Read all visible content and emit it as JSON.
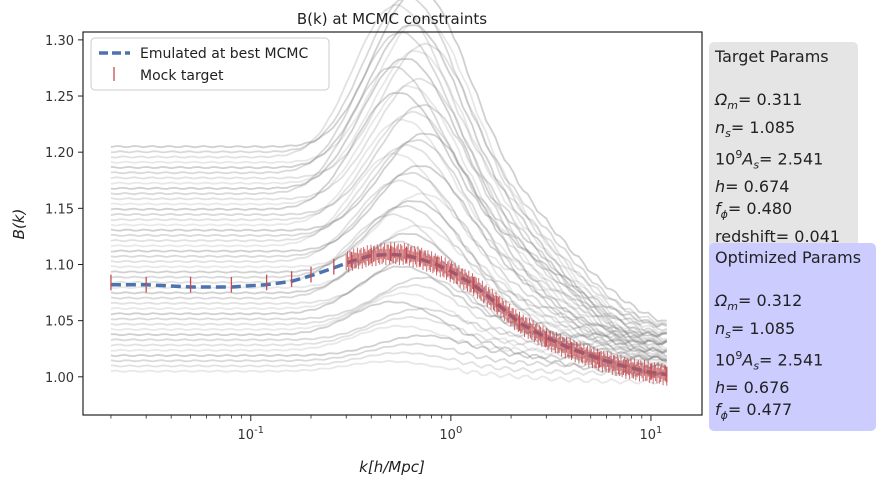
{
  "chart_data": {
    "type": "line",
    "title": "B(k) at MCMC constraints",
    "xlabel": "k[h/Mpc]",
    "ylabel": "B(k)",
    "xscale": "log",
    "xlim": [
      0.0145,
      18
    ],
    "ylim": [
      0.966,
      1.307
    ],
    "x_tick_labels": [
      "10^-1",
      "10^0",
      "10^1"
    ],
    "y_ticks": [
      1.0,
      1.05,
      1.1,
      1.15,
      1.2,
      1.25,
      1.3
    ],
    "y_tick_labels": [
      "1.00",
      "1.05",
      "1.10",
      "1.15",
      "1.20",
      "1.25",
      "1.30"
    ],
    "grid": false,
    "legend_position": "top-left",
    "series": [
      {
        "name": "Emulated at best MCMC",
        "style": "dashed",
        "color": "#4c72b0",
        "x": [
          0.02,
          0.03,
          0.05,
          0.08,
          0.12,
          0.16,
          0.2,
          0.26,
          0.32,
          0.4,
          0.5,
          0.6,
          0.7,
          0.85,
          1.0,
          1.3,
          1.7,
          2.2,
          3.0,
          4.0,
          5.5,
          7.5,
          10.0,
          12.0
        ],
        "values": [
          1.082,
          1.082,
          1.08,
          1.08,
          1.082,
          1.085,
          1.09,
          1.097,
          1.103,
          1.108,
          1.109,
          1.108,
          1.105,
          1.1,
          1.094,
          1.082,
          1.065,
          1.048,
          1.035,
          1.025,
          1.016,
          1.009,
          1.004,
          1.002
        ]
      },
      {
        "name": "Mock target",
        "style": "errorbar",
        "color": "#c44e52",
        "x": [
          0.02,
          0.03,
          0.05,
          0.08,
          0.12,
          0.16,
          0.2,
          0.26,
          0.32,
          0.4,
          0.5,
          0.6,
          0.7,
          0.85,
          1.0,
          1.3,
          1.7,
          2.2,
          3.0,
          4.0,
          5.5,
          7.5,
          10.0,
          12.0
        ],
        "values": [
          1.084,
          1.082,
          1.082,
          1.082,
          1.084,
          1.087,
          1.091,
          1.098,
          1.104,
          1.108,
          1.11,
          1.109,
          1.106,
          1.1,
          1.094,
          1.082,
          1.065,
          1.048,
          1.034,
          1.024,
          1.015,
          1.008,
          1.004,
          1.002
        ],
        "error": 0.007
      }
    ],
    "background_curves": {
      "color": "#808080",
      "count": 44,
      "low_k_min": 1.005,
      "low_k_max": 1.205,
      "peak_max": 1.29,
      "high_k_end_min": 0.995,
      "high_k_end_max": 1.04
    }
  },
  "target_panel": {
    "header": "Target Params",
    "params": [
      {
        "symbol": "Ω",
        "sub": "m",
        "sup": "",
        "prefix": "",
        "value": "= 0.311"
      },
      {
        "symbol": "n",
        "sub": "s",
        "sup": "",
        "prefix": "",
        "value": "= 1.085"
      },
      {
        "symbol": "A",
        "sub": "s",
        "sup": "9",
        "prefix": "10",
        "value": "= 2.541"
      },
      {
        "symbol": "h",
        "sub": "",
        "sup": "",
        "prefix": "",
        "value": "= 0.674"
      },
      {
        "symbol": "f",
        "sub": "ϕ",
        "sup": "",
        "prefix": "",
        "value": "= 0.480"
      }
    ],
    "extra": "redshift= 0.041"
  },
  "opt_panel": {
    "header": "Optimized Params",
    "params": [
      {
        "symbol": "Ω",
        "sub": "m",
        "sup": "",
        "prefix": "",
        "value": "= 0.312"
      },
      {
        "symbol": "n",
        "sub": "s",
        "sup": "",
        "prefix": "",
        "value": "= 1.085"
      },
      {
        "symbol": "A",
        "sub": "s",
        "sup": "9",
        "prefix": "10",
        "value": "= 2.541"
      },
      {
        "symbol": "h",
        "sub": "",
        "sup": "",
        "prefix": "",
        "value": "= 0.676"
      },
      {
        "symbol": "f",
        "sub": "ϕ",
        "sup": "",
        "prefix": "",
        "value": "= 0.477"
      }
    ]
  }
}
